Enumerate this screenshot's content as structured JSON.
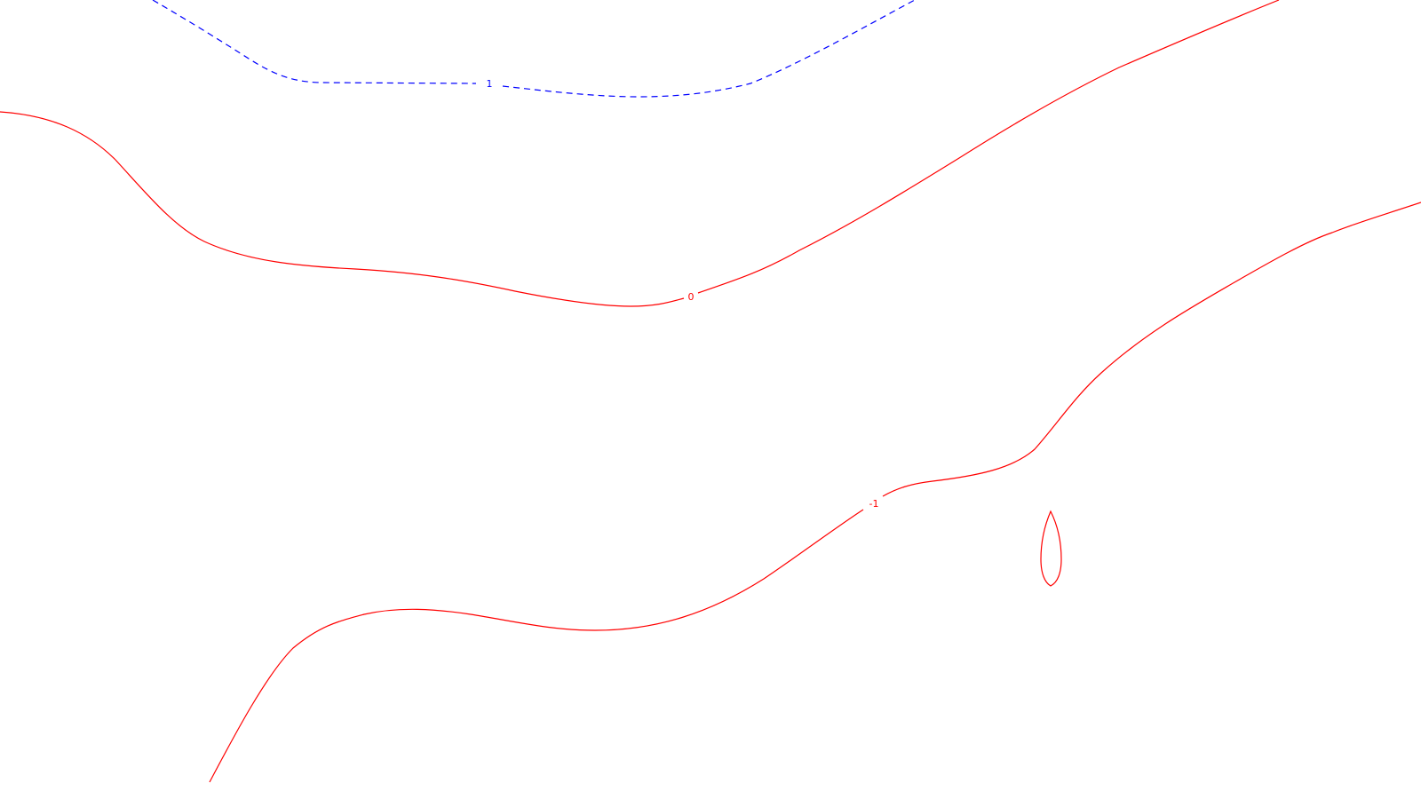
{
  "chart_data": {
    "type": "contour",
    "title": "",
    "xlabel": "",
    "ylabel": "",
    "grid": false,
    "colors": {
      "positive": "#0000ff",
      "zero_and_negative": "#ff0000"
    },
    "contours": [
      {
        "level": 1,
        "label": "1",
        "style": "dashed",
        "color": "#0000ff"
      },
      {
        "level": 0,
        "label": "0",
        "style": "solid",
        "color": "#ff0000"
      },
      {
        "level": -1,
        "label": "-1",
        "style": "solid",
        "color": "#ff0000"
      },
      {
        "level": -1,
        "label": "",
        "style": "solid",
        "color": "#ff0000",
        "closed": true
      }
    ]
  }
}
